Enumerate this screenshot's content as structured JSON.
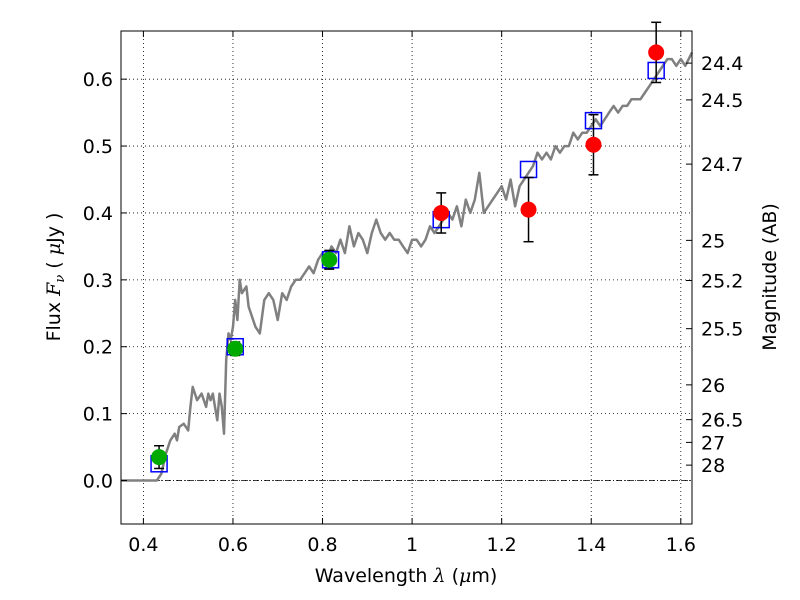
{
  "chart_data": {
    "type": "scatter",
    "title": "",
    "xlabel": "Wavelength  λ (μm)",
    "ylabel": "Flux  F_ν  ( μJy )",
    "ylabel_parts": {
      "prefix": "Flux  ",
      "symbol": "F",
      "sub": "ν",
      "mid": "  ( ",
      "mu": "μ",
      "suffix": "Jy )"
    },
    "xlabel_parts": {
      "prefix": "Wavelength  ",
      "symbol": "λ",
      "mid": " (",
      "mu": "μ",
      "suffix": "m)"
    },
    "right_ylabel": "Magnitude (AB)",
    "xlim": [
      0.35,
      1.625
    ],
    "ylim": [
      -0.065,
      0.672
    ],
    "grid": true,
    "x_ticks": [
      0.4,
      0.6,
      0.8,
      1.0,
      1.2,
      1.4,
      1.6
    ],
    "x_tick_labels": [
      "0.4",
      "0.6",
      "0.8",
      "1",
      "1.2",
      "1.4",
      "1.6"
    ],
    "y_ticks": [
      0.0,
      0.1,
      0.2,
      0.3,
      0.4,
      0.5,
      0.6
    ],
    "y_tick_labels": [
      "0.0",
      "0.1",
      "0.2",
      "0.3",
      "0.4",
      "0.5",
      "0.6"
    ],
    "right_ticks": [
      {
        "label": "24.4",
        "flux": 0.624
      },
      {
        "label": "24.5",
        "flux": 0.569
      },
      {
        "label": "24.7",
        "flux": 0.473
      },
      {
        "label": "25",
        "flux": 0.359
      },
      {
        "label": "25.2",
        "flux": 0.299
      },
      {
        "label": "25.5",
        "flux": 0.227
      },
      {
        "label": "26",
        "flux": 0.143
      },
      {
        "label": "26.5",
        "flux": 0.091
      },
      {
        "label": "27",
        "flux": 0.057
      },
      {
        "label": "28",
        "flux": 0.023
      }
    ],
    "series": [
      {
        "kind": "line",
        "color": "#808080",
        "x": [
          0.35,
          0.43,
          0.44,
          0.45,
          0.46,
          0.47,
          0.475,
          0.48,
          0.49,
          0.5,
          0.505,
          0.51,
          0.515,
          0.52,
          0.53,
          0.54,
          0.545,
          0.55,
          0.555,
          0.56,
          0.565,
          0.57,
          0.575,
          0.58,
          0.585,
          0.59,
          0.595,
          0.6,
          0.605,
          0.61,
          0.615,
          0.62,
          0.63,
          0.635,
          0.64,
          0.65,
          0.66,
          0.67,
          0.68,
          0.69,
          0.7,
          0.71,
          0.72,
          0.73,
          0.74,
          0.75,
          0.76,
          0.77,
          0.78,
          0.79,
          0.8,
          0.81,
          0.82,
          0.83,
          0.84,
          0.85,
          0.86,
          0.87,
          0.88,
          0.89,
          0.9,
          0.91,
          0.92,
          0.93,
          0.94,
          0.95,
          0.96,
          0.97,
          0.98,
          0.99,
          1.0,
          1.01,
          1.02,
          1.03,
          1.04,
          1.05,
          1.06,
          1.07,
          1.08,
          1.09,
          1.1,
          1.11,
          1.12,
          1.13,
          1.14,
          1.15,
          1.16,
          1.17,
          1.18,
          1.19,
          1.2,
          1.21,
          1.22,
          1.23,
          1.24,
          1.25,
          1.26,
          1.27,
          1.28,
          1.29,
          1.3,
          1.31,
          1.32,
          1.33,
          1.34,
          1.35,
          1.36,
          1.37,
          1.38,
          1.39,
          1.4,
          1.41,
          1.42,
          1.43,
          1.44,
          1.45,
          1.46,
          1.47,
          1.48,
          1.49,
          1.5,
          1.51,
          1.52,
          1.53,
          1.54,
          1.55,
          1.56,
          1.57,
          1.58,
          1.59,
          1.6,
          1.61,
          1.625
        ],
        "y": [
          0.0,
          0.0,
          0.01,
          0.04,
          0.06,
          0.07,
          0.06,
          0.08,
          0.085,
          0.075,
          0.11,
          0.14,
          0.13,
          0.12,
          0.13,
          0.11,
          0.13,
          0.12,
          0.13,
          0.11,
          0.09,
          0.13,
          0.11,
          0.07,
          0.18,
          0.22,
          0.21,
          0.23,
          0.27,
          0.24,
          0.3,
          0.28,
          0.29,
          0.26,
          0.25,
          0.23,
          0.22,
          0.27,
          0.28,
          0.27,
          0.24,
          0.28,
          0.27,
          0.29,
          0.3,
          0.3,
          0.31,
          0.32,
          0.31,
          0.33,
          0.34,
          0.33,
          0.35,
          0.34,
          0.36,
          0.34,
          0.38,
          0.35,
          0.37,
          0.36,
          0.34,
          0.37,
          0.39,
          0.37,
          0.36,
          0.37,
          0.36,
          0.36,
          0.35,
          0.34,
          0.36,
          0.36,
          0.35,
          0.36,
          0.38,
          0.37,
          0.38,
          0.39,
          0.4,
          0.39,
          0.41,
          0.38,
          0.42,
          0.4,
          0.42,
          0.46,
          0.4,
          0.41,
          0.42,
          0.43,
          0.44,
          0.42,
          0.45,
          0.41,
          0.44,
          0.45,
          0.46,
          0.47,
          0.49,
          0.48,
          0.49,
          0.48,
          0.5,
          0.49,
          0.5,
          0.5,
          0.52,
          0.51,
          0.52,
          0.52,
          0.53,
          0.54,
          0.53,
          0.54,
          0.55,
          0.56,
          0.55,
          0.56,
          0.56,
          0.57,
          0.57,
          0.57,
          0.58,
          0.59,
          0.6,
          0.61,
          0.62,
          0.63,
          0.63,
          0.62,
          0.63,
          0.62,
          0.64
        ]
      },
      {
        "kind": "square",
        "color": "#0000ff",
        "x": [
          0.435,
          0.605,
          0.818,
          1.065,
          1.26,
          1.405,
          1.545
        ],
        "y": [
          0.025,
          0.2,
          0.33,
          0.39,
          0.465,
          0.538,
          0.613
        ]
      },
      {
        "kind": "circle",
        "color": "#00aa00",
        "x": [
          0.435,
          0.605,
          0.815
        ],
        "y": [
          0.035,
          0.197,
          0.33
        ],
        "err": [
          0.017,
          0.01,
          0.014
        ]
      },
      {
        "kind": "circle",
        "color": "#ff0000",
        "x": [
          1.065,
          1.26,
          1.405,
          1.545
        ],
        "y": [
          0.4,
          0.405,
          0.502,
          0.64
        ],
        "err": [
          0.03,
          0.048,
          0.045,
          0.045
        ]
      }
    ]
  }
}
